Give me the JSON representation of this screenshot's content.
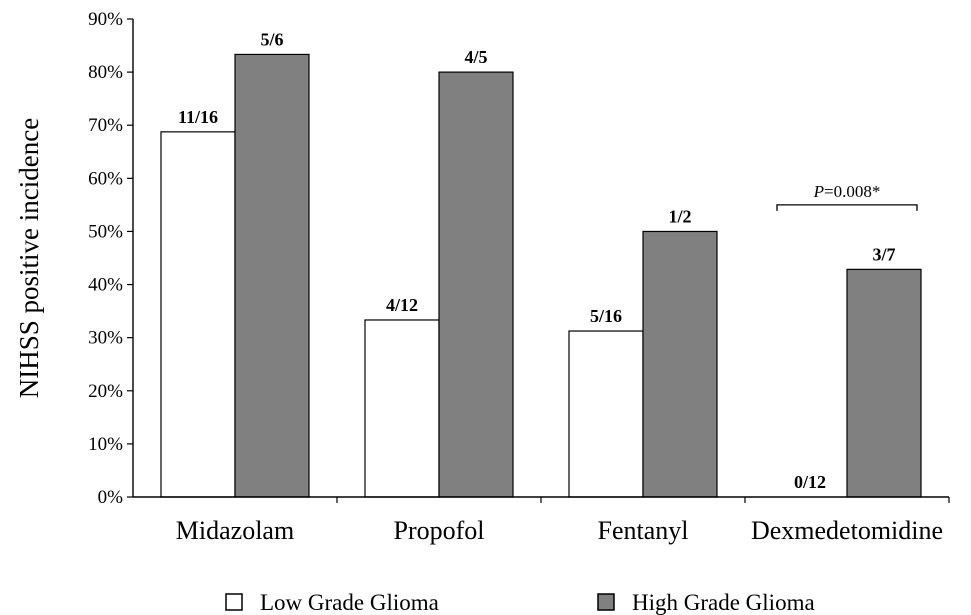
{
  "chart_data": {
    "type": "bar",
    "ylabel": "NIHSS positive incidence",
    "ylim": [
      0,
      90
    ],
    "yticks": [
      "0%",
      "10%",
      "20%",
      "30%",
      "40%",
      "50%",
      "60%",
      "70%",
      "80%",
      "90%"
    ],
    "ytick_values": [
      0,
      10,
      20,
      30,
      40,
      50,
      60,
      70,
      80,
      90
    ],
    "categories": [
      "Midazolam",
      "Propofol",
      "Fentanyl",
      "Dexmedetomidine"
    ],
    "series": [
      {
        "name": "Low Grade Glioma",
        "color": "#ffffff",
        "values": [
          68.75,
          33.33,
          31.25,
          0
        ],
        "labels": [
          "11/16",
          "4/12",
          "5/16",
          "0/12"
        ]
      },
      {
        "name": "High Grade Glioma",
        "color": "#808080",
        "values": [
          83.33,
          80,
          50,
          42.86
        ],
        "labels": [
          "5/6",
          "4/5",
          "1/2",
          "3/7"
        ]
      }
    ],
    "annotation": {
      "category_index": 3,
      "y": 55,
      "italic_part": "P",
      "text": "=0.008*"
    },
    "legend_position": "bottom",
    "grid": false
  }
}
